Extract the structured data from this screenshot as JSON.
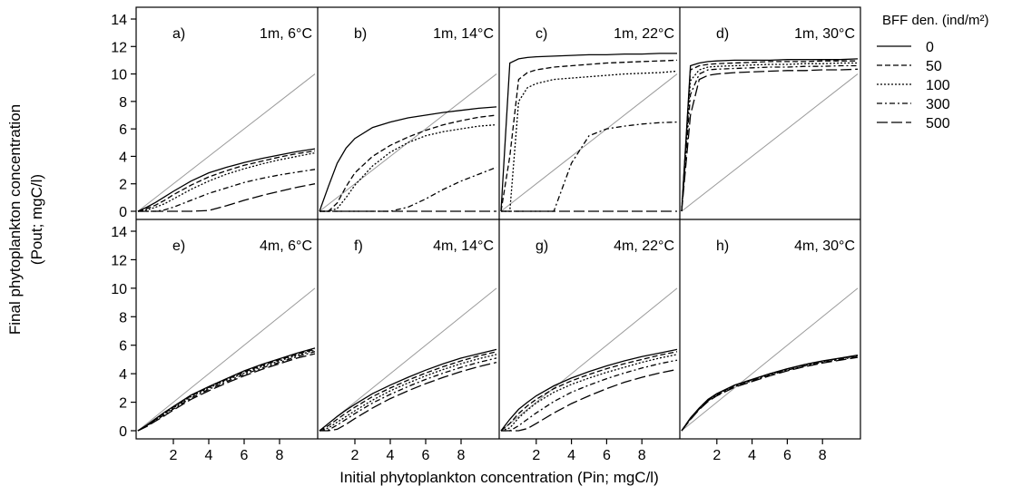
{
  "figure": {
    "ylabel_line1": "Final phytoplankton concentration",
    "ylabel_line2": "(Pout; mgC/l)",
    "xlabel": "Initial phytoplankton concentration (Pin; mgC/l)",
    "legend_title": "BFF den. (ind/m²)",
    "legend_entries": [
      "0",
      "50",
      "100",
      "300",
      "500"
    ]
  },
  "chart_data": {
    "type": "line",
    "xlim": [
      0,
      10
    ],
    "ylim": [
      0,
      14
    ],
    "x_ticks": [
      2,
      4,
      6,
      8
    ],
    "x_tick_labels": [
      "2",
      "4",
      "6",
      "8"
    ],
    "y_ticks": [
      0,
      2,
      4,
      6,
      8,
      10,
      12,
      14
    ],
    "y_tick_labels": [
      "0",
      "2",
      "4",
      "6",
      "8",
      "10",
      "12",
      "14"
    ],
    "legend_position": "right",
    "reference_line": "1:1",
    "series_names": [
      "0",
      "50",
      "100",
      "300",
      "500"
    ],
    "series_styles": [
      "solid",
      "dash",
      "dot",
      "dashdot",
      "longdash"
    ],
    "x": [
      0,
      0.5,
      1,
      1.5,
      2,
      3,
      4,
      5,
      6,
      7,
      8,
      9,
      10
    ],
    "panels": [
      {
        "label": "a)",
        "condition": "1m, 6°C",
        "series": [
          [
            0,
            0.3,
            0.65,
            1.05,
            1.45,
            2.2,
            2.8,
            3.2,
            3.55,
            3.85,
            4.1,
            4.35,
            4.55
          ],
          [
            0,
            0.2,
            0.45,
            0.8,
            1.2,
            1.9,
            2.5,
            2.95,
            3.35,
            3.65,
            3.95,
            4.2,
            4.4
          ],
          [
            0,
            0.1,
            0.3,
            0.55,
            0.9,
            1.6,
            2.2,
            2.7,
            3.1,
            3.45,
            3.75,
            4.0,
            4.25
          ],
          [
            0,
            0,
            0,
            0.1,
            0.3,
            0.8,
            1.3,
            1.7,
            2.1,
            2.4,
            2.65,
            2.85,
            3.05
          ],
          [
            0,
            0,
            0,
            0,
            0,
            0,
            0.05,
            0.4,
            0.8,
            1.15,
            1.45,
            1.75,
            2.0
          ]
        ]
      },
      {
        "label": "b)",
        "condition": "1m, 14°C",
        "series": [
          [
            0,
            1.8,
            3.5,
            4.6,
            5.3,
            6.1,
            6.5,
            6.8,
            7.0,
            7.2,
            7.35,
            7.5,
            7.6
          ],
          [
            0,
            0,
            0.6,
            1.8,
            2.8,
            4.0,
            4.8,
            5.4,
            5.9,
            6.3,
            6.6,
            6.85,
            7.0
          ],
          [
            0,
            0,
            0.2,
            1.0,
            1.9,
            3.3,
            4.3,
            5.0,
            5.5,
            5.8,
            6.0,
            6.2,
            6.3
          ],
          [
            0,
            0,
            0,
            0,
            0,
            0,
            0,
            0.3,
            0.9,
            1.6,
            2.2,
            2.7,
            3.2
          ],
          [
            0,
            0,
            0,
            0,
            0,
            0,
            0,
            0,
            0,
            0,
            0,
            0,
            0
          ]
        ]
      },
      {
        "label": "c)",
        "condition": "1m, 22°C",
        "series": [
          [
            0,
            10.8,
            11.1,
            11.2,
            11.25,
            11.3,
            11.35,
            11.4,
            11.4,
            11.45,
            11.45,
            11.5,
            11.5
          ],
          [
            0,
            4.0,
            9.6,
            10.1,
            10.3,
            10.5,
            10.6,
            10.7,
            10.8,
            10.85,
            10.9,
            10.95,
            11.0
          ],
          [
            0,
            0,
            8.0,
            9.0,
            9.3,
            9.6,
            9.7,
            9.8,
            9.9,
            10.0,
            10.05,
            10.1,
            10.2
          ],
          [
            0,
            0,
            0,
            0,
            0,
            0,
            3.5,
            5.5,
            6.0,
            6.2,
            6.35,
            6.45,
            6.5
          ],
          [
            0,
            0,
            0,
            0,
            0,
            0,
            0,
            0,
            0,
            0,
            0,
            0,
            0
          ]
        ]
      },
      {
        "label": "d)",
        "condition": "1m, 30°C",
        "series": [
          [
            0,
            10.6,
            10.8,
            10.9,
            10.95,
            11.0,
            11.0,
            11.0,
            11.05,
            11.05,
            11.05,
            11.05,
            11.1
          ],
          [
            0,
            10.3,
            10.6,
            10.7,
            10.75,
            10.8,
            10.85,
            10.9,
            10.9,
            10.9,
            10.95,
            10.95,
            10.95
          ],
          [
            0,
            9.5,
            10.3,
            10.5,
            10.55,
            10.6,
            10.65,
            10.7,
            10.7,
            10.75,
            10.75,
            10.8,
            10.8
          ],
          [
            0,
            8.5,
            10.0,
            10.3,
            10.35,
            10.4,
            10.45,
            10.5,
            10.5,
            10.55,
            10.55,
            10.6,
            10.6
          ],
          [
            0,
            7.0,
            9.6,
            9.9,
            10.0,
            10.1,
            10.15,
            10.2,
            10.25,
            10.25,
            10.3,
            10.3,
            10.35
          ]
        ]
      },
      {
        "label": "e)",
        "condition": "4m, 6°C",
        "series": [
          [
            0,
            0.4,
            0.85,
            1.3,
            1.7,
            2.5,
            3.1,
            3.65,
            4.2,
            4.65,
            5.05,
            5.45,
            5.8
          ],
          [
            0,
            0.38,
            0.8,
            1.25,
            1.65,
            2.45,
            3.05,
            3.6,
            4.12,
            4.58,
            4.98,
            5.38,
            5.72
          ],
          [
            0,
            0.36,
            0.78,
            1.2,
            1.6,
            2.4,
            3.0,
            3.55,
            4.05,
            4.5,
            4.9,
            5.3,
            5.65
          ],
          [
            0,
            0.33,
            0.72,
            1.12,
            1.52,
            2.3,
            2.9,
            3.45,
            3.95,
            4.4,
            4.8,
            5.2,
            5.55
          ],
          [
            0,
            0.3,
            0.68,
            1.05,
            1.45,
            2.2,
            2.8,
            3.35,
            3.85,
            4.3,
            4.7,
            5.1,
            5.4
          ]
        ]
      },
      {
        "label": "f)",
        "condition": "4m, 14°C",
        "series": [
          [
            0,
            0.5,
            1.0,
            1.45,
            1.85,
            2.6,
            3.2,
            3.75,
            4.25,
            4.7,
            5.1,
            5.4,
            5.7
          ],
          [
            0,
            0.35,
            0.8,
            1.25,
            1.65,
            2.4,
            3.0,
            3.55,
            4.05,
            4.5,
            4.9,
            5.25,
            5.55
          ],
          [
            0,
            0.2,
            0.6,
            1.0,
            1.4,
            2.15,
            2.8,
            3.35,
            3.85,
            4.3,
            4.7,
            5.05,
            5.35
          ],
          [
            0,
            0.05,
            0.4,
            0.8,
            1.2,
            1.95,
            2.55,
            3.1,
            3.6,
            4.05,
            4.45,
            4.8,
            5.1
          ],
          [
            0,
            0,
            0.1,
            0.45,
            0.85,
            1.6,
            2.25,
            2.8,
            3.3,
            3.75,
            4.15,
            4.5,
            4.8
          ]
        ]
      },
      {
        "label": "g)",
        "condition": "4m, 22°C",
        "series": [
          [
            0,
            0.8,
            1.5,
            2.0,
            2.45,
            3.15,
            3.7,
            4.15,
            4.55,
            4.9,
            5.2,
            5.45,
            5.7
          ],
          [
            0,
            0.5,
            1.2,
            1.75,
            2.2,
            2.95,
            3.5,
            3.95,
            4.35,
            4.7,
            5.0,
            5.3,
            5.55
          ],
          [
            0,
            0.2,
            0.9,
            1.45,
            1.95,
            2.7,
            3.25,
            3.7,
            4.1,
            4.45,
            4.8,
            5.1,
            5.35
          ],
          [
            0,
            0,
            0.35,
            0.8,
            1.25,
            2.05,
            2.7,
            3.2,
            3.65,
            4.05,
            4.4,
            4.7,
            4.95
          ],
          [
            0,
            0,
            0,
            0.15,
            0.5,
            1.25,
            1.9,
            2.45,
            2.95,
            3.4,
            3.75,
            4.05,
            4.3
          ]
        ]
      },
      {
        "label": "h)",
        "condition": "4m, 30°C",
        "series": [
          [
            0,
            0.9,
            1.6,
            2.2,
            2.6,
            3.2,
            3.6,
            4.0,
            4.35,
            4.65,
            4.9,
            5.1,
            5.3
          ],
          [
            0,
            0.88,
            1.58,
            2.18,
            2.58,
            3.18,
            3.58,
            3.98,
            4.33,
            4.63,
            4.88,
            5.08,
            5.28
          ],
          [
            0,
            0.86,
            1.56,
            2.15,
            2.55,
            3.15,
            3.55,
            3.95,
            4.3,
            4.6,
            4.85,
            5.05,
            5.25
          ],
          [
            0,
            0.82,
            1.52,
            2.1,
            2.5,
            3.1,
            3.5,
            3.9,
            4.25,
            4.55,
            4.8,
            5.0,
            5.2
          ],
          [
            0,
            0.78,
            1.48,
            2.05,
            2.45,
            3.05,
            3.45,
            3.85,
            4.2,
            4.5,
            4.75,
            4.95,
            5.15
          ]
        ]
      }
    ]
  }
}
